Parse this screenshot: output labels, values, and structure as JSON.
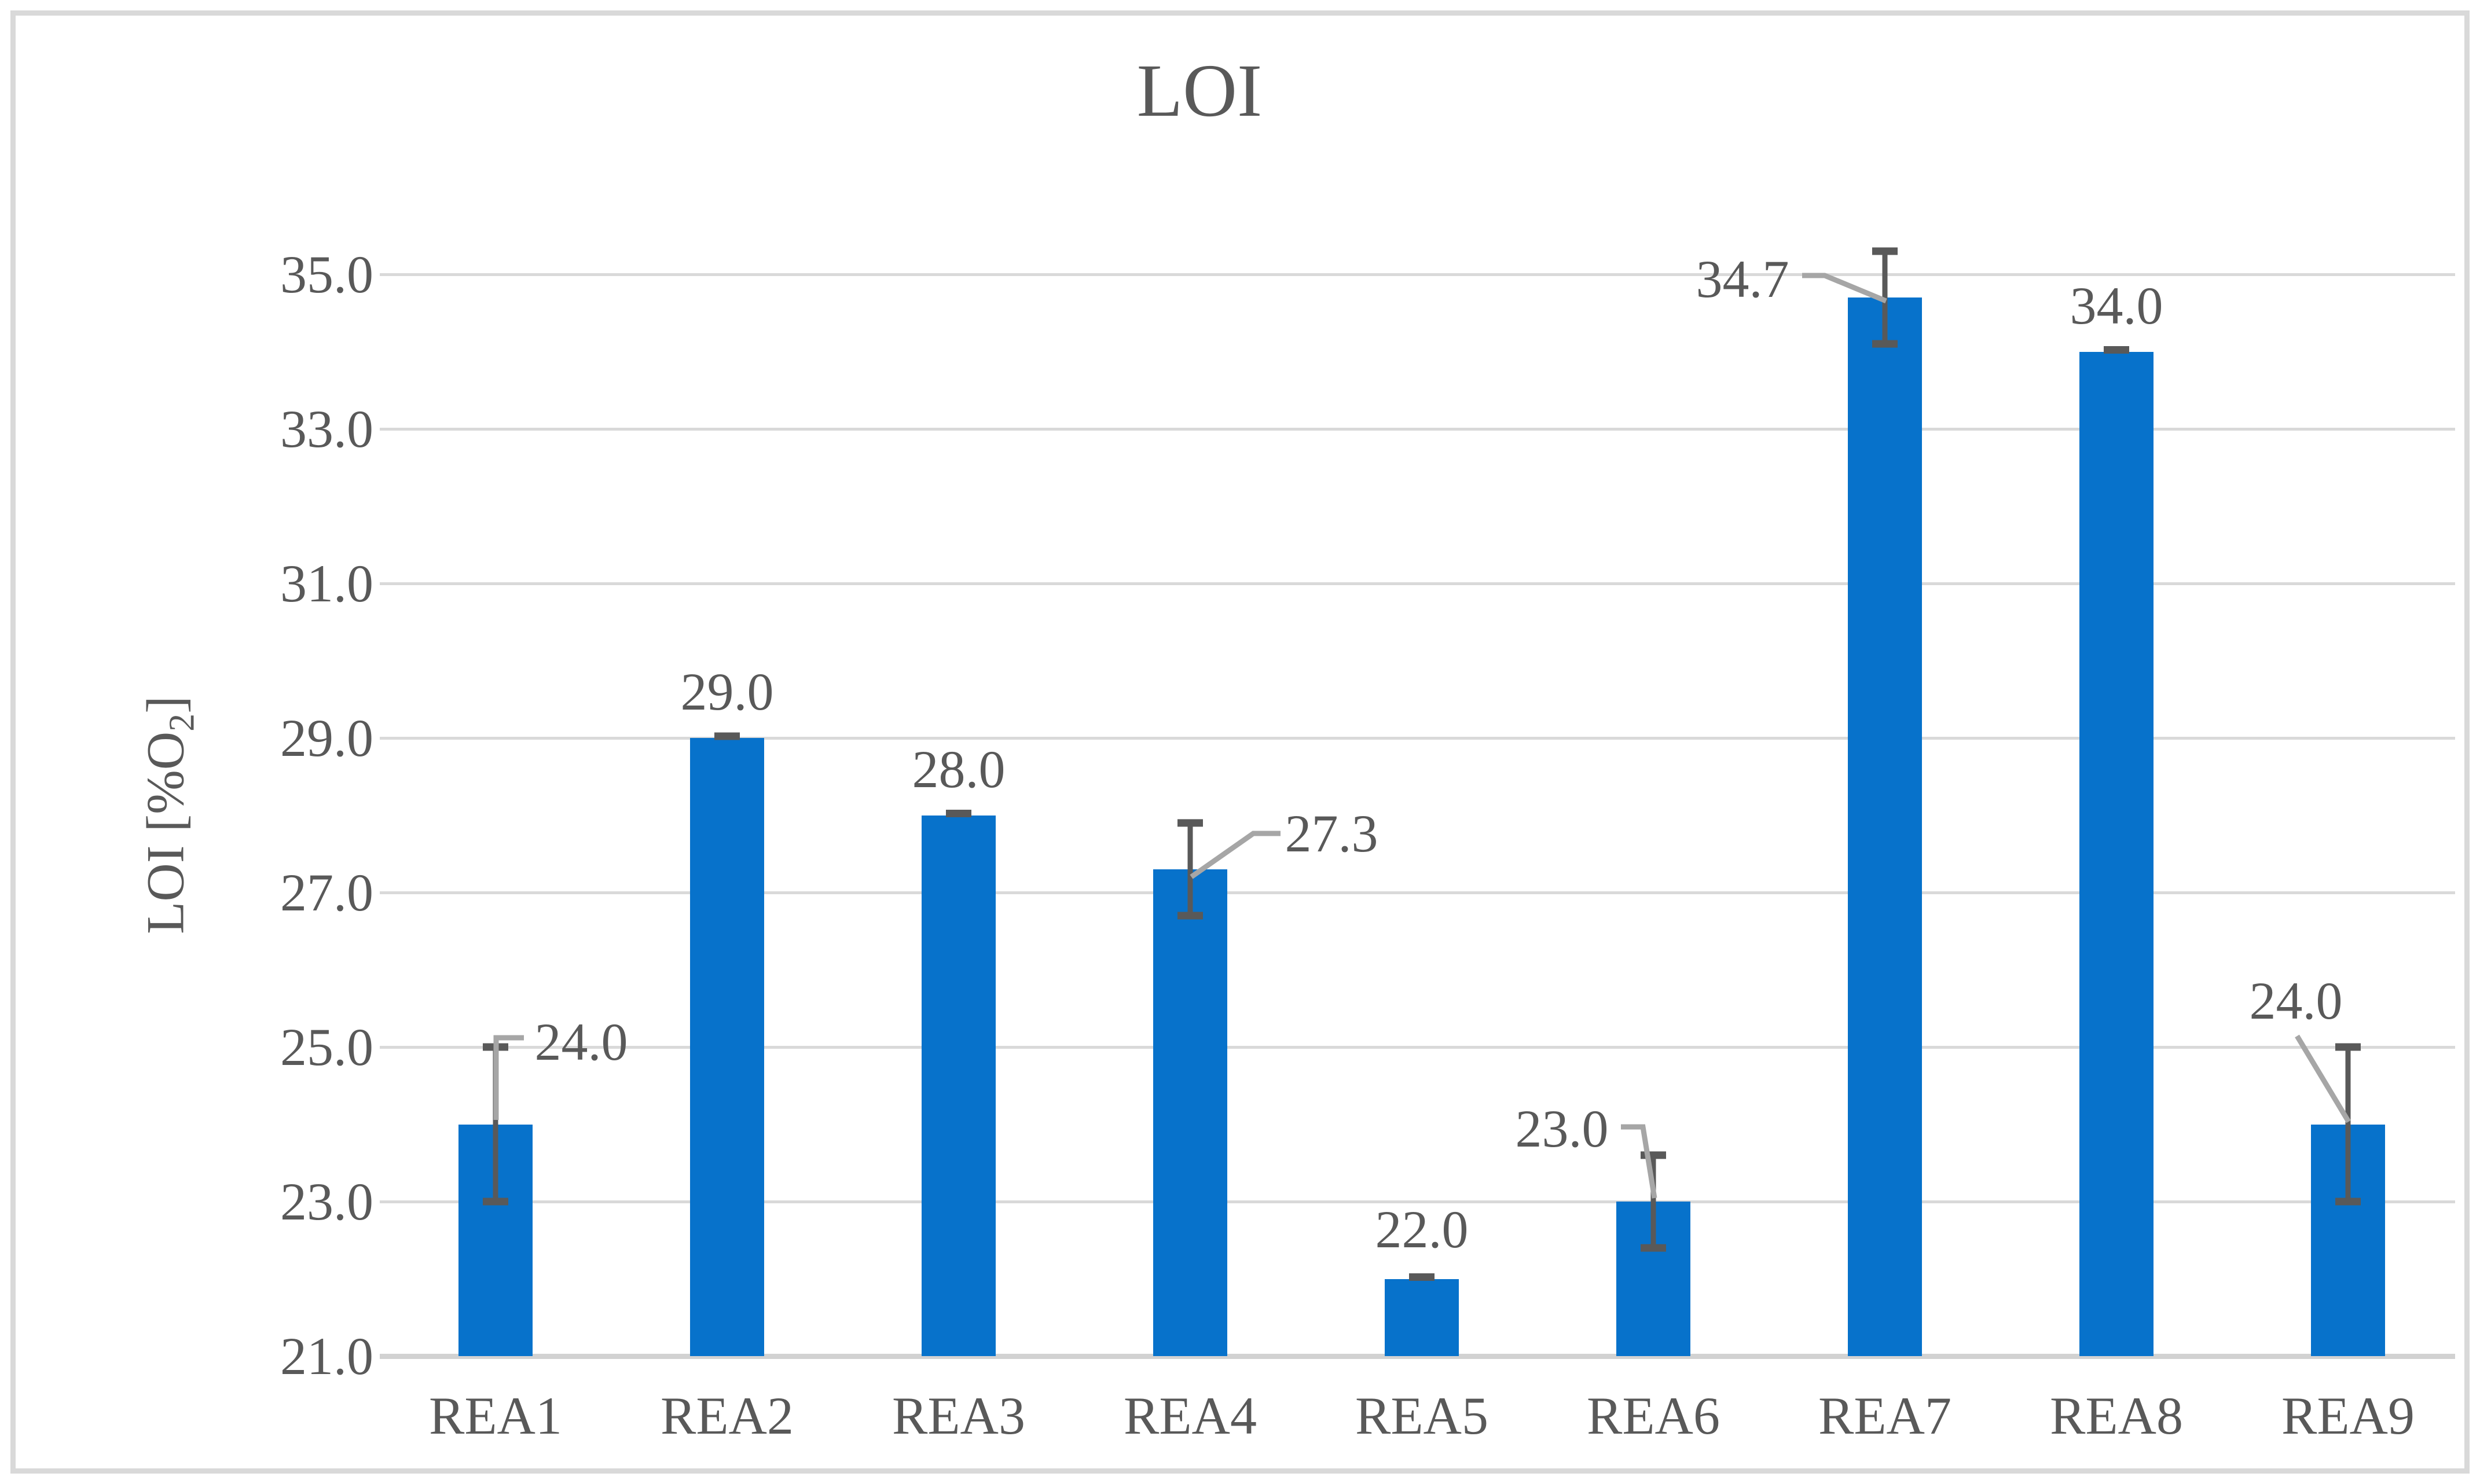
{
  "chart_data": {
    "type": "bar",
    "title": "LOI",
    "xlabel": "",
    "ylabel": "LOI [%O2]",
    "ylabel_parts": {
      "prefix": "LOI [%O",
      "sub": "2",
      "suffix": "]"
    },
    "categories": [
      "REA1",
      "REA2",
      "REA3",
      "REA4",
      "REA5",
      "REA6",
      "REA7",
      "REA8",
      "REA9"
    ],
    "values": [
      24.0,
      29.0,
      28.0,
      27.3,
      22.0,
      23.0,
      34.7,
      34.0,
      24.0
    ],
    "errors": [
      1.0,
      0.05,
      0.05,
      0.6,
      0.05,
      0.6,
      0.6,
      0.05,
      1.0
    ],
    "data_labels": [
      "24.0",
      "29.0",
      "28.0",
      "27.3",
      "22.0",
      "23.0",
      "34.7",
      "34.0",
      "24.0"
    ],
    "label_placements": [
      "leader-right",
      "above",
      "above",
      "leader-right",
      "above",
      "leader-left",
      "leader-left",
      "above",
      "leader-above-left"
    ],
    "yticks": [
      "35.0",
      "33.0",
      "31.0",
      "29.0",
      "27.0",
      "25.0",
      "23.0",
      "21.0"
    ],
    "ylim": [
      21.0,
      36.0
    ],
    "ytick_step": 2.0,
    "grid": true,
    "legend": "none",
    "colors": {
      "bar": "#0772CB",
      "gridline": "#D9D9D9",
      "axis_line": "#D2D2D2",
      "frame_border": "#D9D9D9",
      "error_bar": "#595959",
      "leader_line": "#A6A6A6",
      "text": "#595959"
    }
  }
}
